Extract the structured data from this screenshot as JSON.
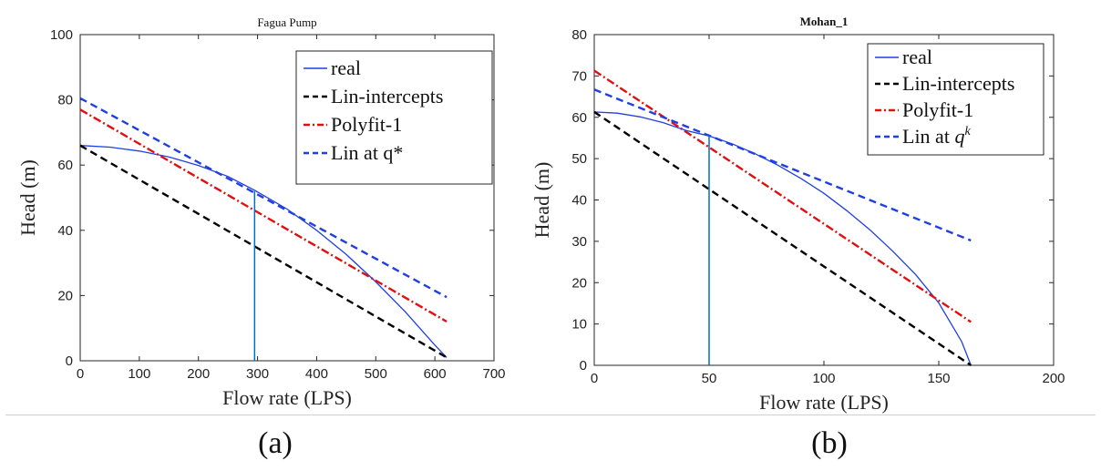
{
  "chart_data": [
    {
      "type": "line",
      "panel_label": "(a)",
      "title": "Fagua Pump",
      "title_bold": false,
      "xlabel": "Flow rate (LPS)",
      "ylabel": "Head (m)",
      "xlim": [
        0,
        700
      ],
      "ylim": [
        0,
        100
      ],
      "xticks": [
        0,
        100,
        200,
        300,
        400,
        500,
        600,
        700
      ],
      "yticks": [
        0,
        20,
        40,
        60,
        80,
        100
      ],
      "legend_position": "top-right",
      "grid": false,
      "vline": {
        "x": 295,
        "y_top": 52,
        "color": "#0072BD"
      },
      "series": [
        {
          "name": "real",
          "style": "solid",
          "color": "#1f3fe0",
          "x": [
            0,
            50,
            100,
            150,
            200,
            250,
            295,
            350,
            400,
            450,
            500,
            550,
            600,
            620
          ],
          "y": [
            66,
            65.5,
            64.3,
            62.5,
            59.9,
            56.5,
            52.3,
            46.5,
            40.0,
            32.6,
            24.2,
            15.0,
            4.8,
            1
          ]
        },
        {
          "name": "Lin-intercepts",
          "style": "dashed",
          "color": "#000000",
          "x": [
            0,
            620
          ],
          "y": [
            66,
            1
          ]
        },
        {
          "name": "Polyfit-1",
          "style": "dashdot",
          "color": "#e01010",
          "x": [
            0,
            620
          ],
          "y": [
            77,
            12
          ]
        },
        {
          "name": "Lin at q*",
          "style": "dashed",
          "color": "#1f3fe0",
          "x": [
            0,
            620
          ],
          "y": [
            80.5,
            19.5
          ]
        }
      ]
    },
    {
      "type": "line",
      "panel_label": "(b)",
      "title": "Mohan_1",
      "title_bold": true,
      "xlabel": "Flow rate (LPS)",
      "ylabel": "Head (m)",
      "xlim": [
        0,
        200
      ],
      "ylim": [
        0,
        80
      ],
      "xticks": [
        0,
        50,
        100,
        150,
        200
      ],
      "yticks": [
        0,
        10,
        20,
        30,
        40,
        50,
        60,
        70,
        80
      ],
      "legend_position": "top-right",
      "grid": false,
      "vline": {
        "x": 50,
        "y_top": 55.5,
        "color": "#0072BD"
      },
      "series": [
        {
          "name": "real",
          "style": "solid",
          "color": "#1f3fe0",
          "x": [
            0,
            10,
            20,
            30,
            40,
            50,
            60,
            70,
            80,
            90,
            100,
            110,
            120,
            130,
            140,
            150,
            160,
            164
          ],
          "y": [
            61.3,
            61.0,
            60.1,
            58.7,
            56.8,
            55.5,
            53.6,
            51.2,
            48.4,
            45.2,
            41.6,
            37.4,
            32.8,
            27.6,
            21.9,
            15.1,
            5.7,
            0
          ]
        },
        {
          "name": "Lin-intercepts",
          "style": "dashed",
          "color": "#000000",
          "x": [
            0,
            164
          ],
          "y": [
            61.3,
            0
          ]
        },
        {
          "name": "Polyfit-1",
          "style": "dashdot",
          "color": "#e01010",
          "x": [
            0,
            164
          ],
          "y": [
            71.3,
            10.5
          ]
        },
        {
          "name": "Lin at q^k",
          "name_display": "Lin at q",
          "name_sup": "k",
          "style": "dashed",
          "color": "#1f3fe0",
          "x": [
            0,
            164
          ],
          "y": [
            66.7,
            30.2
          ]
        }
      ]
    }
  ]
}
